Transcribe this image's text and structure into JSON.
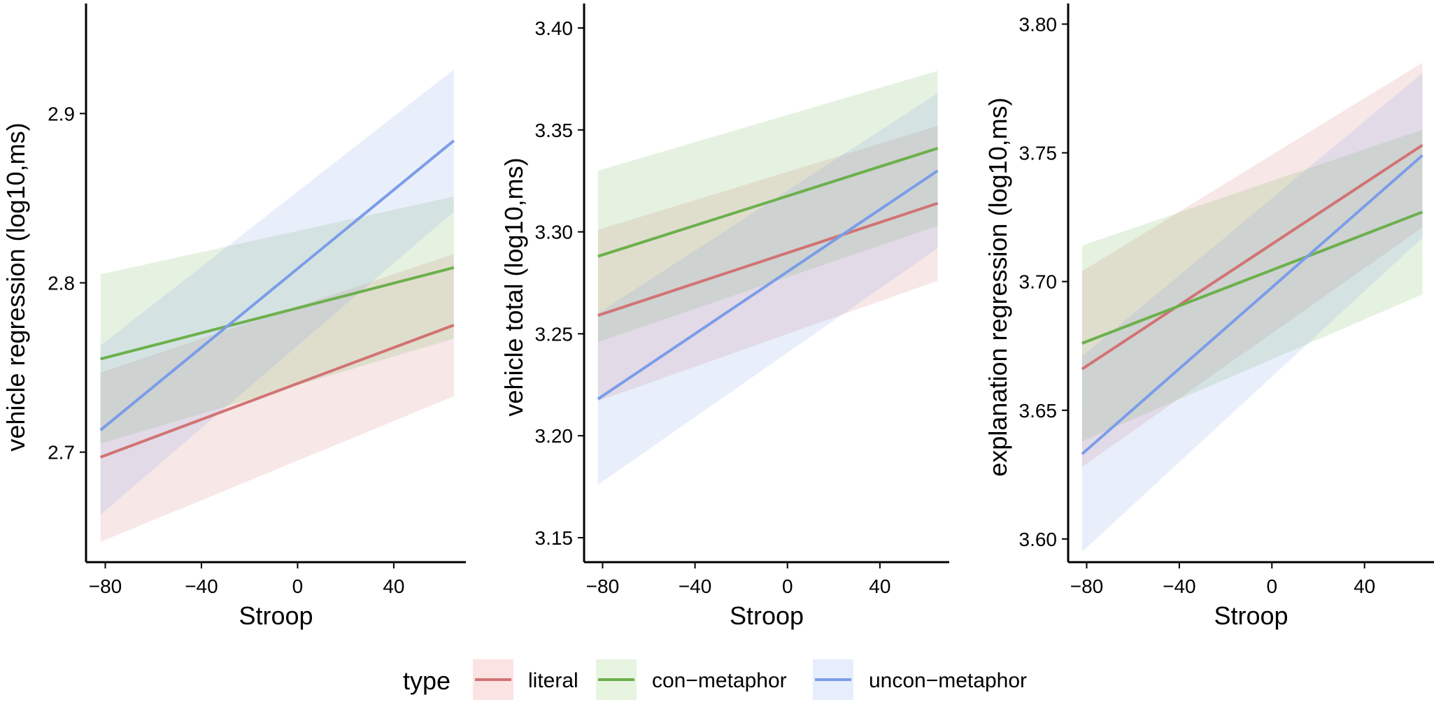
{
  "legend": {
    "title": "type",
    "entries": [
      {
        "label": "literal",
        "color": "#d27373",
        "ribbon": "#fbe3e3"
      },
      {
        "label": "con−metaphor",
        "color": "#6cb04c",
        "ribbon": "#e7f4e0"
      },
      {
        "label": "uncon−metaphor",
        "color": "#7b9de8",
        "ribbon": "#e6edfc"
      }
    ]
  },
  "chart_data": [
    {
      "type": "line",
      "xlabel": "Stroop",
      "ylabel": "vehicle regression (log10,ms)",
      "xlim": [
        -88,
        70
      ],
      "ylim": [
        2.635,
        2.965
      ],
      "xticks": [
        "−80",
        "−40",
        "0",
        "40"
      ],
      "xtick_values": [
        -80,
        -40,
        0,
        40
      ],
      "yticks": [
        "2.7",
        "2.8",
        "2.9"
      ],
      "ytick_values": [
        2.7,
        2.8,
        2.9
      ],
      "x": [
        -82,
        65
      ],
      "series": [
        {
          "name": "literal",
          "values": [
            2.697,
            2.775
          ],
          "ci_lower": [
            2.647,
            2.733
          ],
          "ci_upper": [
            2.747,
            2.817
          ]
        },
        {
          "name": "con−metaphor",
          "values": [
            2.755,
            2.809
          ],
          "ci_lower": [
            2.705,
            2.767
          ],
          "ci_upper": [
            2.805,
            2.851
          ]
        },
        {
          "name": "uncon−metaphor",
          "values": [
            2.713,
            2.884
          ],
          "ci_lower": [
            2.663,
            2.842
          ],
          "ci_upper": [
            2.763,
            2.926
          ]
        }
      ]
    },
    {
      "type": "line",
      "xlabel": "Stroop",
      "ylabel": "vehicle total (log10,ms)",
      "xlim": [
        -88,
        70
      ],
      "ylim": [
        3.138,
        3.412
      ],
      "xticks": [
        "−80",
        "−40",
        "0",
        "40"
      ],
      "xtick_values": [
        -80,
        -40,
        0,
        40
      ],
      "yticks": [
        "3.15",
        "3.20",
        "3.25",
        "3.30",
        "3.35",
        "3.40"
      ],
      "ytick_values": [
        3.15,
        3.2,
        3.25,
        3.3,
        3.35,
        3.4
      ],
      "x": [
        -82,
        65
      ],
      "series": [
        {
          "name": "literal",
          "values": [
            3.259,
            3.314
          ],
          "ci_lower": [
            3.217,
            3.276
          ],
          "ci_upper": [
            3.301,
            3.352
          ]
        },
        {
          "name": "con−metaphor",
          "values": [
            3.288,
            3.341
          ],
          "ci_lower": [
            3.246,
            3.303
          ],
          "ci_upper": [
            3.33,
            3.379
          ]
        },
        {
          "name": "uncon−metaphor",
          "values": [
            3.218,
            3.33
          ],
          "ci_lower": [
            3.176,
            3.292
          ],
          "ci_upper": [
            3.26,
            3.368
          ]
        }
      ]
    },
    {
      "type": "line",
      "xlabel": "Stroop",
      "ylabel": "explanation regression (log10,ms)",
      "xlim": [
        -88,
        70
      ],
      "ylim": [
        3.591,
        3.808
      ],
      "xticks": [
        "−80",
        "−40",
        "0",
        "40"
      ],
      "xtick_values": [
        -80,
        -40,
        0,
        40
      ],
      "yticks": [
        "3.60",
        "3.65",
        "3.70",
        "3.75",
        "3.80"
      ],
      "ytick_values": [
        3.6,
        3.65,
        3.7,
        3.75,
        3.8
      ],
      "x": [
        -82,
        65
      ],
      "series": [
        {
          "name": "literal",
          "values": [
            3.666,
            3.753
          ],
          "ci_lower": [
            3.628,
            3.721
          ],
          "ci_upper": [
            3.704,
            3.785
          ]
        },
        {
          "name": "con−metaphor",
          "values": [
            3.676,
            3.727
          ],
          "ci_lower": [
            3.638,
            3.695
          ],
          "ci_upper": [
            3.714,
            3.759
          ]
        },
        {
          "name": "uncon−metaphor",
          "values": [
            3.633,
            3.749
          ],
          "ci_lower": [
            3.595,
            3.717
          ],
          "ci_upper": [
            3.671,
            3.781
          ]
        }
      ]
    }
  ]
}
